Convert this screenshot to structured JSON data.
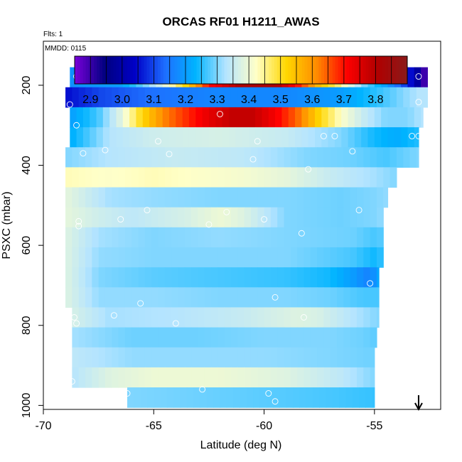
{
  "chart_data": {
    "type": "heatmap",
    "title": "ORCAS RF01 H1211_AWAS",
    "note_flts": "Flts: 1",
    "note_mmdd": "MMDD: 0115",
    "xlabel": "Latitude (deg N)",
    "ylabel": "PSXC (mbar)",
    "xlim": [
      -70,
      -52
    ],
    "ylim": [
      1010,
      90
    ],
    "x_ticks": [
      -70,
      -65,
      -60,
      -55
    ],
    "x_tick_labels": [
      "-70",
      "-65",
      "-60",
      "-55"
    ],
    "y_ticks": [
      200,
      400,
      600,
      800,
      1000
    ],
    "y_tick_labels": [
      "200",
      "400",
      "600",
      "800",
      "1000"
    ],
    "colorbar": {
      "min": 2.85,
      "max": 3.9,
      "ticks": [
        2.9,
        3.0,
        3.1,
        3.2,
        3.3,
        3.4,
        3.5,
        3.6,
        3.7,
        3.8
      ],
      "tick_labels": [
        "2.9",
        "3.0",
        "3.1",
        "3.2",
        "3.3",
        "3.4",
        "3.5",
        "3.6",
        "3.7",
        "3.8"
      ],
      "colors": [
        "#7a00d9",
        "#000080",
        "#0000c8",
        "#1e6fff",
        "#00b4ff",
        "#b4e4ff",
        "#ffffc8",
        "#ffd700",
        "#ff8c00",
        "#ff0000",
        "#b00000",
        "#8b1a1a"
      ]
    },
    "bands": [
      {
        "p": 180,
        "x_start": -68.8,
        "x_end": -52.6,
        "profile": [
          [
            -68.8,
            3.18
          ],
          [
            -66.5,
            3.2
          ],
          [
            -65.0,
            3.33
          ],
          [
            -63.5,
            3.52
          ],
          [
            -62.5,
            3.7
          ],
          [
            -61.0,
            3.82
          ],
          [
            -59.5,
            3.82
          ],
          [
            -58.5,
            3.7
          ],
          [
            -57.5,
            3.55
          ],
          [
            -56.5,
            3.45
          ],
          [
            -55.5,
            3.3
          ],
          [
            -54.5,
            3.2
          ],
          [
            -53.5,
            3.08
          ],
          [
            -53.0,
            2.98
          ],
          [
            -52.6,
            2.85
          ]
        ]
      },
      {
        "p": 230,
        "x_start": -69.0,
        "x_end": -52.6,
        "profile": [
          [
            -69.0,
            3.05
          ],
          [
            -67.5,
            3.1
          ],
          [
            -65.0,
            3.14
          ],
          [
            -62.0,
            3.17
          ],
          [
            -59.0,
            3.17
          ],
          [
            -56.5,
            3.2
          ],
          [
            -54.5,
            3.27
          ],
          [
            -53.0,
            3.33
          ],
          [
            -52.6,
            3.33
          ]
        ]
      },
      {
        "p": 280,
        "x_start": -68.8,
        "x_end": -52.8,
        "profile": [
          [
            -68.8,
            3.2
          ],
          [
            -67.5,
            3.27
          ],
          [
            -66.5,
            3.38
          ],
          [
            -65.5,
            3.52
          ],
          [
            -64.5,
            3.62
          ],
          [
            -63.5,
            3.68
          ],
          [
            -62.5,
            3.74
          ],
          [
            -61.5,
            3.78
          ],
          [
            -60.5,
            3.78
          ],
          [
            -59.5,
            3.72
          ],
          [
            -58.5,
            3.64
          ],
          [
            -57.5,
            3.52
          ],
          [
            -56.5,
            3.42
          ],
          [
            -55.5,
            3.35
          ],
          [
            -54.5,
            3.3
          ],
          [
            -53.5,
            3.3
          ],
          [
            -52.8,
            3.33
          ]
        ]
      },
      {
        "p": 330,
        "x_start": -68.8,
        "x_end": -53.0,
        "profile": [
          [
            -68.8,
            3.22
          ],
          [
            -67.0,
            3.33
          ],
          [
            -65.0,
            3.36
          ],
          [
            -62.0,
            3.37
          ],
          [
            -59.0,
            3.35
          ],
          [
            -56.5,
            3.3
          ],
          [
            -55.0,
            3.24
          ],
          [
            -54.0,
            3.22
          ],
          [
            -53.0,
            3.25
          ]
        ]
      },
      {
        "p": 380,
        "x_start": -69.0,
        "x_end": -53.0,
        "profile": [
          [
            -69.0,
            3.3
          ],
          [
            -67.0,
            3.33
          ],
          [
            -64.0,
            3.35
          ],
          [
            -61.0,
            3.34
          ],
          [
            -58.0,
            3.3
          ],
          [
            -56.0,
            3.29
          ],
          [
            -54.5,
            3.27
          ],
          [
            -53.0,
            3.3
          ]
        ]
      },
      {
        "p": 430,
        "x_start": -69.0,
        "x_end": -54.0,
        "profile": [
          [
            -69.0,
            3.43
          ],
          [
            -67.0,
            3.42
          ],
          [
            -65.0,
            3.43
          ],
          [
            -63.0,
            3.42
          ],
          [
            -61.0,
            3.41
          ],
          [
            -59.0,
            3.39
          ],
          [
            -57.0,
            3.35
          ],
          [
            -55.0,
            3.32
          ],
          [
            -54.0,
            3.3
          ]
        ]
      },
      {
        "p": 480,
        "x_start": -69.0,
        "x_end": -54.4,
        "profile": [
          [
            -69.0,
            3.39
          ],
          [
            -67.0,
            3.32
          ],
          [
            -65.0,
            3.31
          ],
          [
            -62.0,
            3.3
          ],
          [
            -59.0,
            3.3
          ],
          [
            -56.5,
            3.29
          ],
          [
            -55.0,
            3.3
          ],
          [
            -54.4,
            3.31
          ]
        ]
      },
      {
        "p": 530,
        "x_start": -69.0,
        "x_end": -54.6,
        "profile": [
          [
            -69.0,
            3.39
          ],
          [
            -67.5,
            3.36
          ],
          [
            -66.0,
            3.34
          ],
          [
            -63.5,
            3.37
          ],
          [
            -62.0,
            3.4
          ],
          [
            -61.0,
            3.38
          ],
          [
            -59.0,
            3.3
          ],
          [
            -56.5,
            3.29
          ],
          [
            -55.0,
            3.3
          ],
          [
            -54.6,
            3.31
          ]
        ]
      },
      {
        "p": 580,
        "x_start": -69.0,
        "x_end": -54.6,
        "profile": [
          [
            -69.0,
            3.38
          ],
          [
            -67.5,
            3.32
          ],
          [
            -65.0,
            3.3
          ],
          [
            -62.0,
            3.31
          ],
          [
            -59.0,
            3.3
          ],
          [
            -56.0,
            3.29
          ],
          [
            -55.0,
            3.27
          ],
          [
            -54.6,
            3.28
          ]
        ]
      },
      {
        "p": 630,
        "x_start": -69.0,
        "x_end": -54.6,
        "profile": [
          [
            -69.0,
            3.38
          ],
          [
            -67.5,
            3.31
          ],
          [
            -65.0,
            3.3
          ],
          [
            -62.0,
            3.3
          ],
          [
            -59.0,
            3.3
          ],
          [
            -56.0,
            3.27
          ],
          [
            -55.0,
            3.24
          ],
          [
            -54.6,
            3.26
          ]
        ]
      },
      {
        "p": 680,
        "x_start": -69.0,
        "x_end": -54.8,
        "profile": [
          [
            -69.0,
            3.38
          ],
          [
            -67.5,
            3.3
          ],
          [
            -65.0,
            3.28
          ],
          [
            -62.0,
            3.27
          ],
          [
            -59.0,
            3.26
          ],
          [
            -57.0,
            3.24
          ],
          [
            -56.0,
            3.2
          ],
          [
            -55.2,
            3.16
          ],
          [
            -54.8,
            3.22
          ]
        ]
      },
      {
        "p": 730,
        "x_start": -69.0,
        "x_end": -54.8,
        "profile": [
          [
            -69.0,
            3.38
          ],
          [
            -67.5,
            3.31
          ],
          [
            -65.0,
            3.31
          ],
          [
            -62.0,
            3.3
          ],
          [
            -59.0,
            3.3
          ],
          [
            -57.0,
            3.29
          ],
          [
            -55.5,
            3.27
          ],
          [
            -54.8,
            3.27
          ]
        ]
      },
      {
        "p": 780,
        "x_start": -68.7,
        "x_end": -54.8,
        "profile": [
          [
            -68.7,
            3.37
          ],
          [
            -67.0,
            3.32
          ],
          [
            -64.0,
            3.33
          ],
          [
            -61.0,
            3.35
          ],
          [
            -58.5,
            3.38
          ],
          [
            -57.5,
            3.37
          ],
          [
            -56.0,
            3.33
          ],
          [
            -54.8,
            3.3
          ]
        ]
      },
      {
        "p": 830,
        "x_start": -68.7,
        "x_end": -54.9,
        "profile": [
          [
            -68.7,
            3.32
          ],
          [
            -66.0,
            3.29
          ],
          [
            -63.0,
            3.29
          ],
          [
            -60.0,
            3.3
          ],
          [
            -57.0,
            3.3
          ],
          [
            -55.5,
            3.29
          ],
          [
            -54.9,
            3.28
          ]
        ]
      },
      {
        "p": 880,
        "x_start": -68.7,
        "x_end": -55.0,
        "profile": [
          [
            -68.7,
            3.34
          ],
          [
            -66.0,
            3.31
          ],
          [
            -63.0,
            3.31
          ],
          [
            -60.0,
            3.31
          ],
          [
            -57.0,
            3.3
          ],
          [
            -55.0,
            3.29
          ]
        ]
      },
      {
        "p": 930,
        "x_start": -68.7,
        "x_end": -55.0,
        "profile": [
          [
            -68.7,
            3.33
          ],
          [
            -67.0,
            3.38
          ],
          [
            -65.0,
            3.4
          ],
          [
            -62.0,
            3.4
          ],
          [
            -59.0,
            3.38
          ],
          [
            -56.5,
            3.34
          ],
          [
            -55.0,
            3.3
          ]
        ]
      },
      {
        "p": 980,
        "x_start": -66.2,
        "x_end": -55.0,
        "profile": [
          [
            -66.2,
            3.3
          ],
          [
            -63.0,
            3.29
          ],
          [
            -60.0,
            3.28
          ],
          [
            -57.0,
            3.27
          ],
          [
            -55.0,
            3.26
          ]
        ]
      }
    ],
    "points": [
      [
        -68.5,
        178
      ],
      [
        -66.3,
        178
      ],
      [
        -60.5,
        178
      ],
      [
        -53.0,
        178
      ],
      [
        -68.8,
        248
      ],
      [
        -53.0,
        242
      ],
      [
        -62.0,
        272
      ],
      [
        -68.5,
        300
      ],
      [
        -57.3,
        327
      ],
      [
        -56.8,
        327
      ],
      [
        -53.3,
        327
      ],
      [
        -53.0,
        327
      ],
      [
        -64.8,
        340
      ],
      [
        -60.3,
        340
      ],
      [
        -68.2,
        370
      ],
      [
        -67.2,
        362
      ],
      [
        -64.3,
        372
      ],
      [
        -56.0,
        365
      ],
      [
        -60.5,
        385
      ],
      [
        -58.0,
        410
      ],
      [
        -53.7,
        445
      ],
      [
        -65.3,
        512
      ],
      [
        -61.7,
        517
      ],
      [
        -55.7,
        512
      ],
      [
        -68.4,
        540
      ],
      [
        -66.5,
        535
      ],
      [
        -62.5,
        548
      ],
      [
        -60.0,
        535
      ],
      [
        -68.4,
        552
      ],
      [
        -58.3,
        570
      ],
      [
        -54.0,
        620
      ],
      [
        -55.2,
        695
      ],
      [
        -59.5,
        730
      ],
      [
        -65.6,
        745
      ],
      [
        -66.8,
        775
      ],
      [
        -68.6,
        780
      ],
      [
        -64.0,
        795
      ],
      [
        -58.2,
        780
      ],
      [
        -68.5,
        795
      ],
      [
        -53.8,
        835
      ],
      [
        -68.7,
        940
      ],
      [
        -62.8,
        960
      ],
      [
        -66.2,
        970
      ],
      [
        -59.8,
        970
      ],
      [
        -59.5,
        990
      ],
      [
        -54.6,
        940
      ],
      [
        -54.4,
        992
      ]
    ],
    "arrow_x": -53.0
  }
}
